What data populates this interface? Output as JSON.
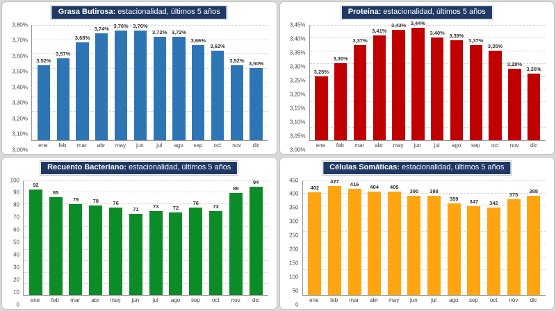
{
  "months": [
    "ene",
    "feb",
    "mar",
    "abr",
    "may",
    "jun",
    "jul",
    "ago",
    "sep",
    "oct",
    "nov",
    "dic"
  ],
  "accent_title_bg": "#1f3864",
  "chart_data": [
    {
      "type": "bar",
      "title_bold": "Grasa Butirosa:",
      "title_rest": " estacionalidad, últimos 5 años",
      "categories": [
        "ene",
        "feb",
        "mar",
        "abr",
        "may",
        "jun",
        "jul",
        "ago",
        "sep",
        "oct",
        "nov",
        "dic"
      ],
      "values": [
        3.52,
        3.57,
        3.68,
        3.74,
        3.76,
        3.76,
        3.72,
        3.72,
        3.66,
        3.62,
        3.52,
        3.5
      ],
      "bar_labels": [
        "3,52%",
        "3,57%",
        "3,68%",
        "3,74%",
        "3,76%",
        "3,76%",
        "3,72%",
        "3,72%",
        "3,66%",
        "3,62%",
        "3,52%",
        "3,50%"
      ],
      "color": "#2e75b6",
      "ymin": 3.0,
      "ymax": 3.8,
      "yticks": [
        "3,80%",
        "3,70%",
        "3,60%",
        "3,50%",
        "3,40%",
        "3,30%",
        "3,20%",
        "3,10%",
        "3,00%"
      ],
      "grid": true,
      "legend": "none"
    },
    {
      "type": "bar",
      "title_bold": "Proteína:",
      "title_rest": " estacionalidad, últimos 5 años",
      "categories": [
        "ene",
        "feb",
        "mar",
        "abr",
        "may",
        "jun",
        "jul",
        "ago",
        "sep",
        "oct",
        "nov",
        "dic"
      ],
      "values": [
        3.25,
        3.3,
        3.37,
        3.41,
        3.43,
        3.44,
        3.4,
        3.39,
        3.37,
        3.35,
        3.28,
        3.26
      ],
      "bar_labels": [
        "3,25%",
        "3,30%",
        "3,37%",
        "3,41%",
        "3,43%",
        "3,44%",
        "3,40%",
        "3,39%",
        "3,37%",
        "3,35%",
        "3,28%",
        "3,26%"
      ],
      "color": "#c00000",
      "ymin": 3.0,
      "ymax": 3.45,
      "yticks": [
        "3,45%",
        "3,40%",
        "3,35%",
        "3,30%",
        "3,25%",
        "3,20%",
        "3,15%",
        "3,10%",
        "3,05%",
        "3,00%"
      ],
      "grid": true,
      "legend": "none"
    },
    {
      "type": "bar",
      "title_bold": "Recuento Bacteriano:",
      "title_rest": " estacionalidad, últimos 5 años",
      "categories": [
        "ene",
        "feb",
        "mar",
        "abr",
        "may",
        "jun",
        "jul",
        "ago",
        "sep",
        "oct",
        "nov",
        "dic"
      ],
      "values": [
        92,
        85,
        79,
        78,
        76,
        71,
        73,
        72,
        76,
        73,
        89,
        94
      ],
      "bar_labels": [
        "92",
        "85",
        "79",
        "78",
        "76",
        "71",
        "73",
        "72",
        "76",
        "73",
        "89",
        "94"
      ],
      "color": "#0b8c26",
      "ymin": 0,
      "ymax": 100,
      "yticks": [
        "100",
        "90",
        "80",
        "70",
        "60",
        "50",
        "40",
        "30",
        "20",
        "10",
        "0"
      ],
      "grid": true,
      "legend": "none"
    },
    {
      "type": "bar",
      "title_bold": "Células Somáticas:",
      "title_rest": " estacionalidad, últimos 5 años",
      "categories": [
        "ene",
        "feb",
        "mar",
        "abr",
        "may",
        "jun",
        "jul",
        "ago",
        "sep",
        "oct",
        "nov",
        "dic"
      ],
      "values": [
        402,
        427,
        416,
        404,
        405,
        390,
        388,
        359,
        347,
        342,
        375,
        388
      ],
      "bar_labels": [
        "402",
        "427",
        "416",
        "404",
        "405",
        "390",
        "388",
        "359",
        "347",
        "342",
        "375",
        "388"
      ],
      "color": "#ffa512",
      "ymin": 0,
      "ymax": 450,
      "yticks": [
        "450",
        "400",
        "350",
        "300",
        "250",
        "200",
        "150",
        "100",
        "50",
        "0"
      ],
      "grid": true,
      "legend": "none"
    }
  ]
}
